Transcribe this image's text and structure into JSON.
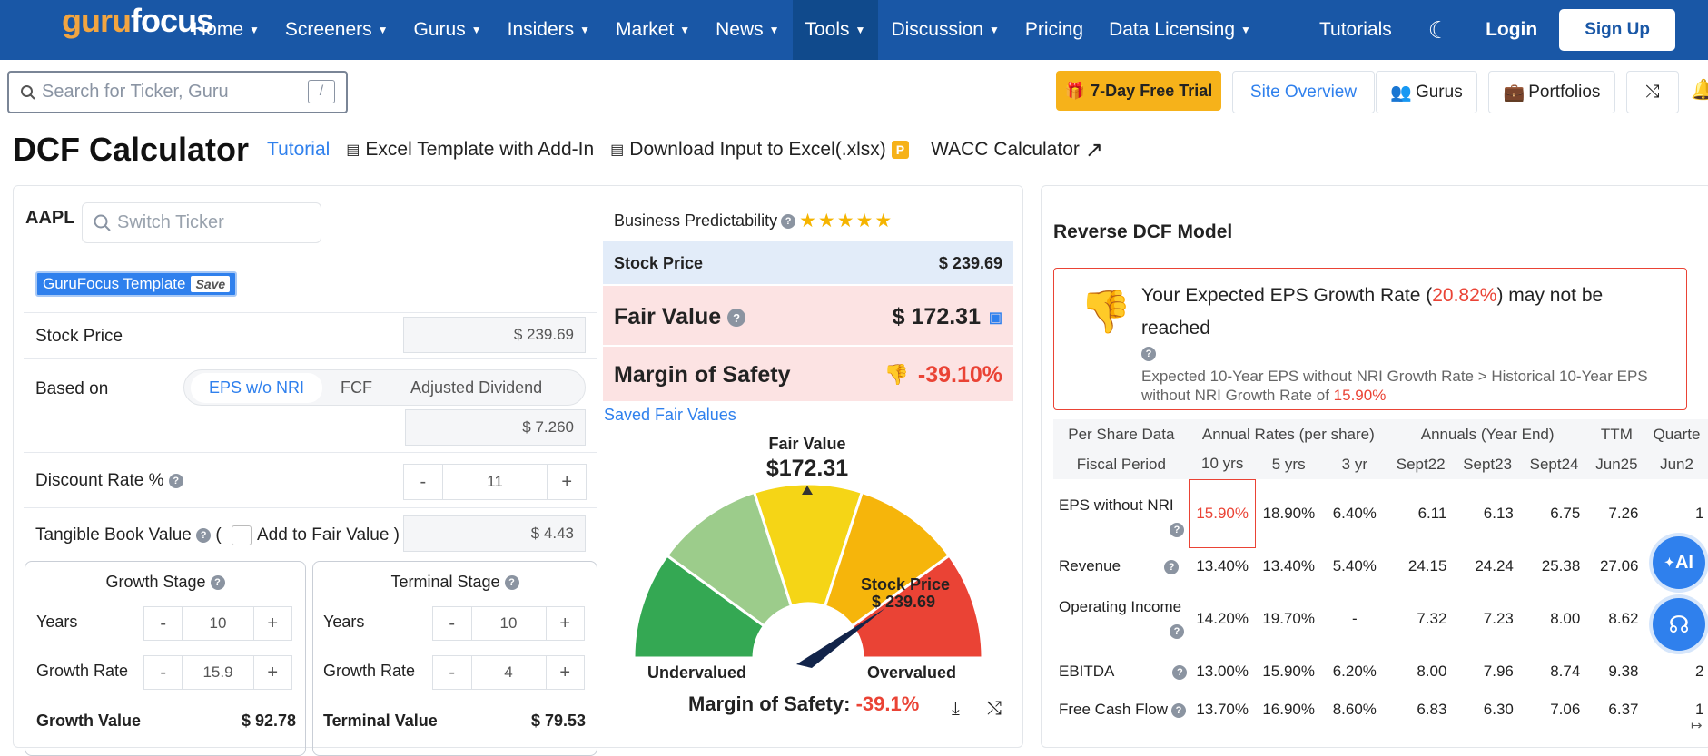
{
  "nav": {
    "logo_a": "guru",
    "logo_b": "focus",
    "items": [
      "Home",
      "Screeners",
      "Gurus",
      "Insiders",
      "Market",
      "News",
      "Tools",
      "Discussion",
      "Pricing",
      "Data Licensing"
    ],
    "tutorials": "Tutorials",
    "login": "Login",
    "signup": "Sign Up"
  },
  "toolbar": {
    "search_placeholder": "Search for Ticker, Guru",
    "slash": "/",
    "trial": "7-Day Free Trial",
    "site_overview": "Site Overview",
    "gurus": "Gurus",
    "portfolios": "Portfolios"
  },
  "header": {
    "title": "DCF Calculator",
    "tutorial": "Tutorial",
    "excel_template": "Excel Template with Add-In",
    "download": "Download Input to Excel(.xlsx)",
    "premium_badge": "P",
    "wacc": "WACC Calculator"
  },
  "calc": {
    "ticker": "AAPL",
    "switch_placeholder": "Switch Ticker",
    "template": "GuruFocus Template",
    "save": "Save",
    "stock_price_label": "Stock Price",
    "stock_price_value": "$ 239.69",
    "based_on_label": "Based on",
    "tabs": [
      "EPS w/o NRI",
      "FCF",
      "Adjusted Dividend"
    ],
    "eps_value": "$ 7.260",
    "discount_label": "Discount Rate %",
    "discount_value": "11",
    "tbv_label": "Tangible Book Value",
    "add_label": "Add to Fair Value",
    "tbv_value": "$ 4.43",
    "growth": {
      "title": "Growth Stage",
      "years_label": "Years",
      "years": "10",
      "rate_label": "Growth Rate",
      "rate": "15.9",
      "value_label": "Growth Value",
      "value": "$ 92.78"
    },
    "terminal": {
      "title": "Terminal Stage",
      "years_label": "Years",
      "years": "10",
      "rate_label": "Growth Rate",
      "rate": "4",
      "value_label": "Terminal Value",
      "value": "$ 79.53"
    }
  },
  "summary": {
    "predictability_label": "Business Predictability",
    "stars": 5,
    "stock_price_label": "Stock Price",
    "stock_price": "$ 239.69",
    "fair_value_label": "Fair Value",
    "fair_value": "$ 172.31",
    "mos_label": "Margin of Safety",
    "mos": "-39.10%",
    "saved": "Saved Fair Values"
  },
  "gauge": {
    "fv_label": "Fair Value",
    "fv": "$172.31",
    "sp_label": "Stock Price",
    "sp": "$ 239.69",
    "under": "Undervalued",
    "over": "Overvalued",
    "mos_label": "Margin of Safety:",
    "mos": "-39.1%",
    "colors": [
      "#34a853",
      "#9ccc8b",
      "#f5d516",
      "#f6b50b",
      "#ea4335"
    ]
  },
  "reverse": {
    "title": "Reverse DCF Model",
    "msg_a": "Your Expected EPS Growth Rate (",
    "msg_rate": "20.82%",
    "msg_b": ") may not be reached",
    "detail": "Expected 10-Year EPS without NRI Growth Rate > Historical 10-Year EPS without NRI Growth Rate of",
    "detail_rate": "15.90%"
  },
  "table": {
    "h1": [
      "Per Share Data",
      "Annual Rates (per share)",
      "Annuals (Year End)",
      "TTM",
      "Quarte"
    ],
    "h2": [
      "Fiscal Period",
      "10 yrs",
      "5 yrs",
      "3 yr",
      "Sept22",
      "Sept23",
      "Sept24",
      "Jun25",
      "Jun2"
    ],
    "rows": [
      [
        "EPS without NRI",
        "15.90%",
        "18.90%",
        "6.40%",
        "6.11",
        "6.13",
        "6.75",
        "7.26",
        "1"
      ],
      [
        "Revenue",
        "13.40%",
        "13.40%",
        "5.40%",
        "24.15",
        "24.24",
        "25.38",
        "27.06",
        ""
      ],
      [
        "Operating Income",
        "14.20%",
        "19.70%",
        "-",
        "7.32",
        "7.23",
        "8.00",
        "8.62",
        ""
      ],
      [
        "EBITDA",
        "13.00%",
        "15.90%",
        "6.20%",
        "8.00",
        "7.96",
        "8.74",
        "9.38",
        "2"
      ],
      [
        "Free Cash Flow",
        "13.70%",
        "16.90%",
        "8.60%",
        "6.83",
        "6.30",
        "7.06",
        "6.37",
        "1"
      ]
    ]
  },
  "float": {
    "ai": "AI"
  }
}
